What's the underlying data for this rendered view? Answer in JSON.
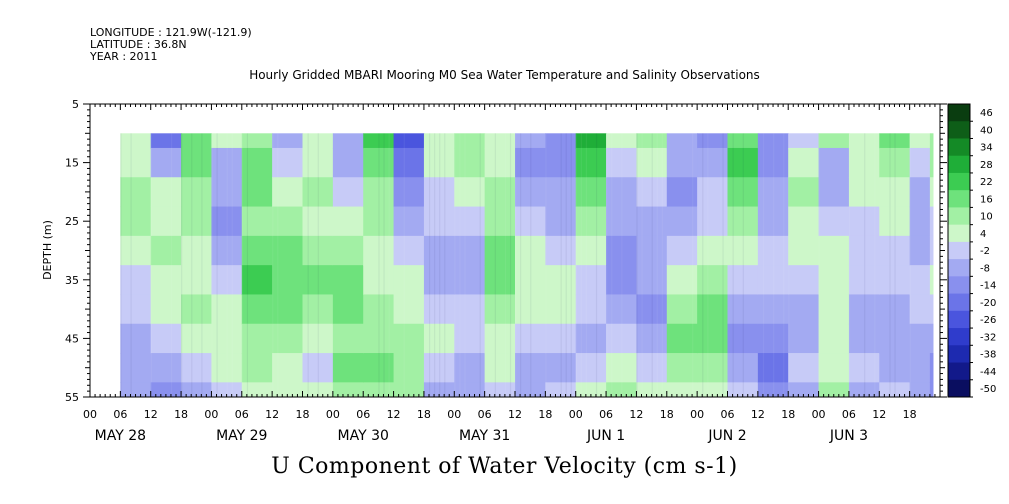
{
  "header": {
    "longitude": "LONGITUDE : 121.9W(-121.9)",
    "latitude": "LATITUDE : 36.8N",
    "year": "YEAR : 2011"
  },
  "chart_data": {
    "type": "heatmap",
    "title": "Hourly Gridded MBARI Mooring M0 Sea Water Temperature and Salinity Observations",
    "xlabel": "U Component of Water Velocity (cm s-1)",
    "ylabel": "DEPTH (m)",
    "y_range": [
      5,
      55
    ],
    "y_ticks": [
      5,
      15,
      25,
      35,
      45,
      55
    ],
    "x_range_hours": [
      0,
      168
    ],
    "hour_ticks": [
      "00",
      "06",
      "12",
      "18",
      "00",
      "06",
      "12",
      "18",
      "00",
      "06",
      "12",
      "18",
      "00",
      "06",
      "12",
      "18",
      "00",
      "06",
      "12",
      "18",
      "00",
      "06",
      "12",
      "18",
      "00",
      "06",
      "12",
      "18"
    ],
    "day_labels": [
      "MAY 28",
      "MAY 29",
      "MAY 30",
      "MAY 31",
      "JUN  1",
      "JUN  2",
      "JUN  3"
    ],
    "data_extent": {
      "hour_start": 6,
      "hour_end": 166,
      "depth_top": 10,
      "depth_bottom": 55
    },
    "colorbar": {
      "levels": [
        "46",
        "40",
        "34",
        "28",
        "22",
        "16",
        "10",
        "4",
        "-2",
        "-8",
        "-14",
        "-20",
        "-26",
        "-32",
        "-38",
        "-44",
        "-50"
      ],
      "colors": [
        "#0a3d10",
        "#0e5e18",
        "#148a26",
        "#1fae38",
        "#3ccc52",
        "#6ee27c",
        "#a2f0a4",
        "#cdf7c9",
        "#c7cbf7",
        "#a3aaf2",
        "#8990ee",
        "#6b74e8",
        "#4a55de",
        "#2f3ccc",
        "#1d2ab0",
        "#12198a",
        "#0a0e60"
      ]
    },
    "field_legend": "velocity (cm s-1) per time column (hours from May 28 00:00) and depth",
    "columns_hours": [
      6,
      12,
      18,
      24,
      30,
      36,
      42,
      48,
      54,
      60,
      66,
      72,
      78,
      84,
      90,
      96,
      102,
      108,
      114,
      120,
      126,
      132,
      138,
      144,
      150,
      156,
      162,
      166
    ],
    "depths_m": [
      10,
      15,
      20,
      25,
      30,
      35,
      40,
      45,
      50,
      55
    ],
    "values": [
      [
        4,
        4,
        10,
        10,
        4,
        -2,
        -2,
        -8,
        -8,
        -8
      ],
      [
        -20,
        -8,
        4,
        4,
        10,
        4,
        4,
        -2,
        -8,
        -14
      ],
      [
        16,
        16,
        10,
        10,
        4,
        4,
        10,
        4,
        -2,
        -8
      ],
      [
        4,
        -8,
        -8,
        -14,
        -8,
        -2,
        4,
        4,
        4,
        -2
      ],
      [
        10,
        16,
        16,
        10,
        16,
        22,
        16,
        10,
        10,
        4
      ],
      [
        -8,
        -2,
        4,
        10,
        16,
        16,
        16,
        10,
        4,
        4
      ],
      [
        4,
        4,
        10,
        4,
        10,
        16,
        10,
        4,
        -2,
        4
      ],
      [
        -8,
        -8,
        -2,
        4,
        10,
        16,
        16,
        10,
        16,
        10
      ],
      [
        22,
        16,
        10,
        10,
        4,
        4,
        10,
        10,
        16,
        10
      ],
      [
        -26,
        -20,
        -14,
        -8,
        -2,
        4,
        4,
        10,
        10,
        10
      ],
      [
        4,
        4,
        -2,
        -2,
        -8,
        -8,
        -2,
        4,
        -2,
        -8
      ],
      [
        10,
        10,
        4,
        -2,
        -8,
        -8,
        -2,
        -2,
        -8,
        -8
      ],
      [
        4,
        4,
        10,
        10,
        16,
        16,
        10,
        4,
        4,
        -2
      ],
      [
        -8,
        -14,
        -8,
        -2,
        4,
        4,
        4,
        -2,
        -8,
        -8
      ],
      [
        -14,
        -14,
        -8,
        -8,
        -2,
        4,
        4,
        -2,
        -8,
        -2
      ],
      [
        28,
        22,
        16,
        10,
        4,
        -2,
        -2,
        -8,
        -2,
        4
      ],
      [
        4,
        -2,
        -8,
        -8,
        -14,
        -14,
        -8,
        -2,
        4,
        10
      ],
      [
        10,
        4,
        -2,
        -8,
        -8,
        -8,
        -14,
        -8,
        -2,
        4
      ],
      [
        -8,
        -8,
        -14,
        -8,
        -2,
        4,
        10,
        16,
        10,
        4
      ],
      [
        -14,
        -8,
        -2,
        -2,
        4,
        10,
        16,
        16,
        10,
        4
      ],
      [
        16,
        22,
        16,
        10,
        4,
        -2,
        -8,
        -14,
        -8,
        -2
      ],
      [
        -14,
        -14,
        -8,
        -8,
        -2,
        -2,
        -8,
        -14,
        -20,
        -14
      ],
      [
        -2,
        4,
        10,
        4,
        4,
        -2,
        -8,
        -8,
        -2,
        -8
      ],
      [
        10,
        -8,
        -8,
        -2,
        4,
        4,
        4,
        4,
        4,
        10
      ],
      [
        4,
        4,
        4,
        -2,
        -2,
        -2,
        -8,
        -8,
        -2,
        -8
      ],
      [
        16,
        10,
        4,
        4,
        -2,
        -2,
        -8,
        -8,
        -8,
        -2
      ],
      [
        4,
        -2,
        -8,
        -8,
        -8,
        -2,
        -2,
        -8,
        -8,
        -8
      ],
      [
        10,
        10,
        4,
        -2,
        -2,
        4,
        -2,
        -8,
        -14,
        -14
      ]
    ]
  }
}
